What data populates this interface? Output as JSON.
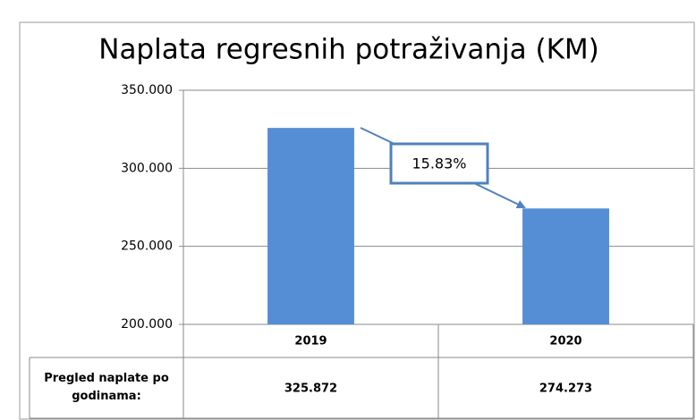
{
  "chart_data": {
    "type": "bar",
    "title": "Naplata regresnih potraživanja (KM)",
    "categories": [
      "2019",
      "2020"
    ],
    "values": [
      325872,
      274273
    ],
    "value_labels": [
      "325.872",
      "274.273"
    ],
    "color": "#558ed5",
    "ylim": [
      200000,
      350000
    ],
    "yticks": [
      {
        "value": 200000,
        "label": "200.000"
      },
      {
        "value": 250000,
        "label": "250.000"
      },
      {
        "value": 300000,
        "label": "300.000"
      },
      {
        "value": 350000,
        "label": "350.000"
      }
    ],
    "grid": true,
    "annotation": "15.83%",
    "table_row_label": "Pregled naplate po godinama:"
  }
}
